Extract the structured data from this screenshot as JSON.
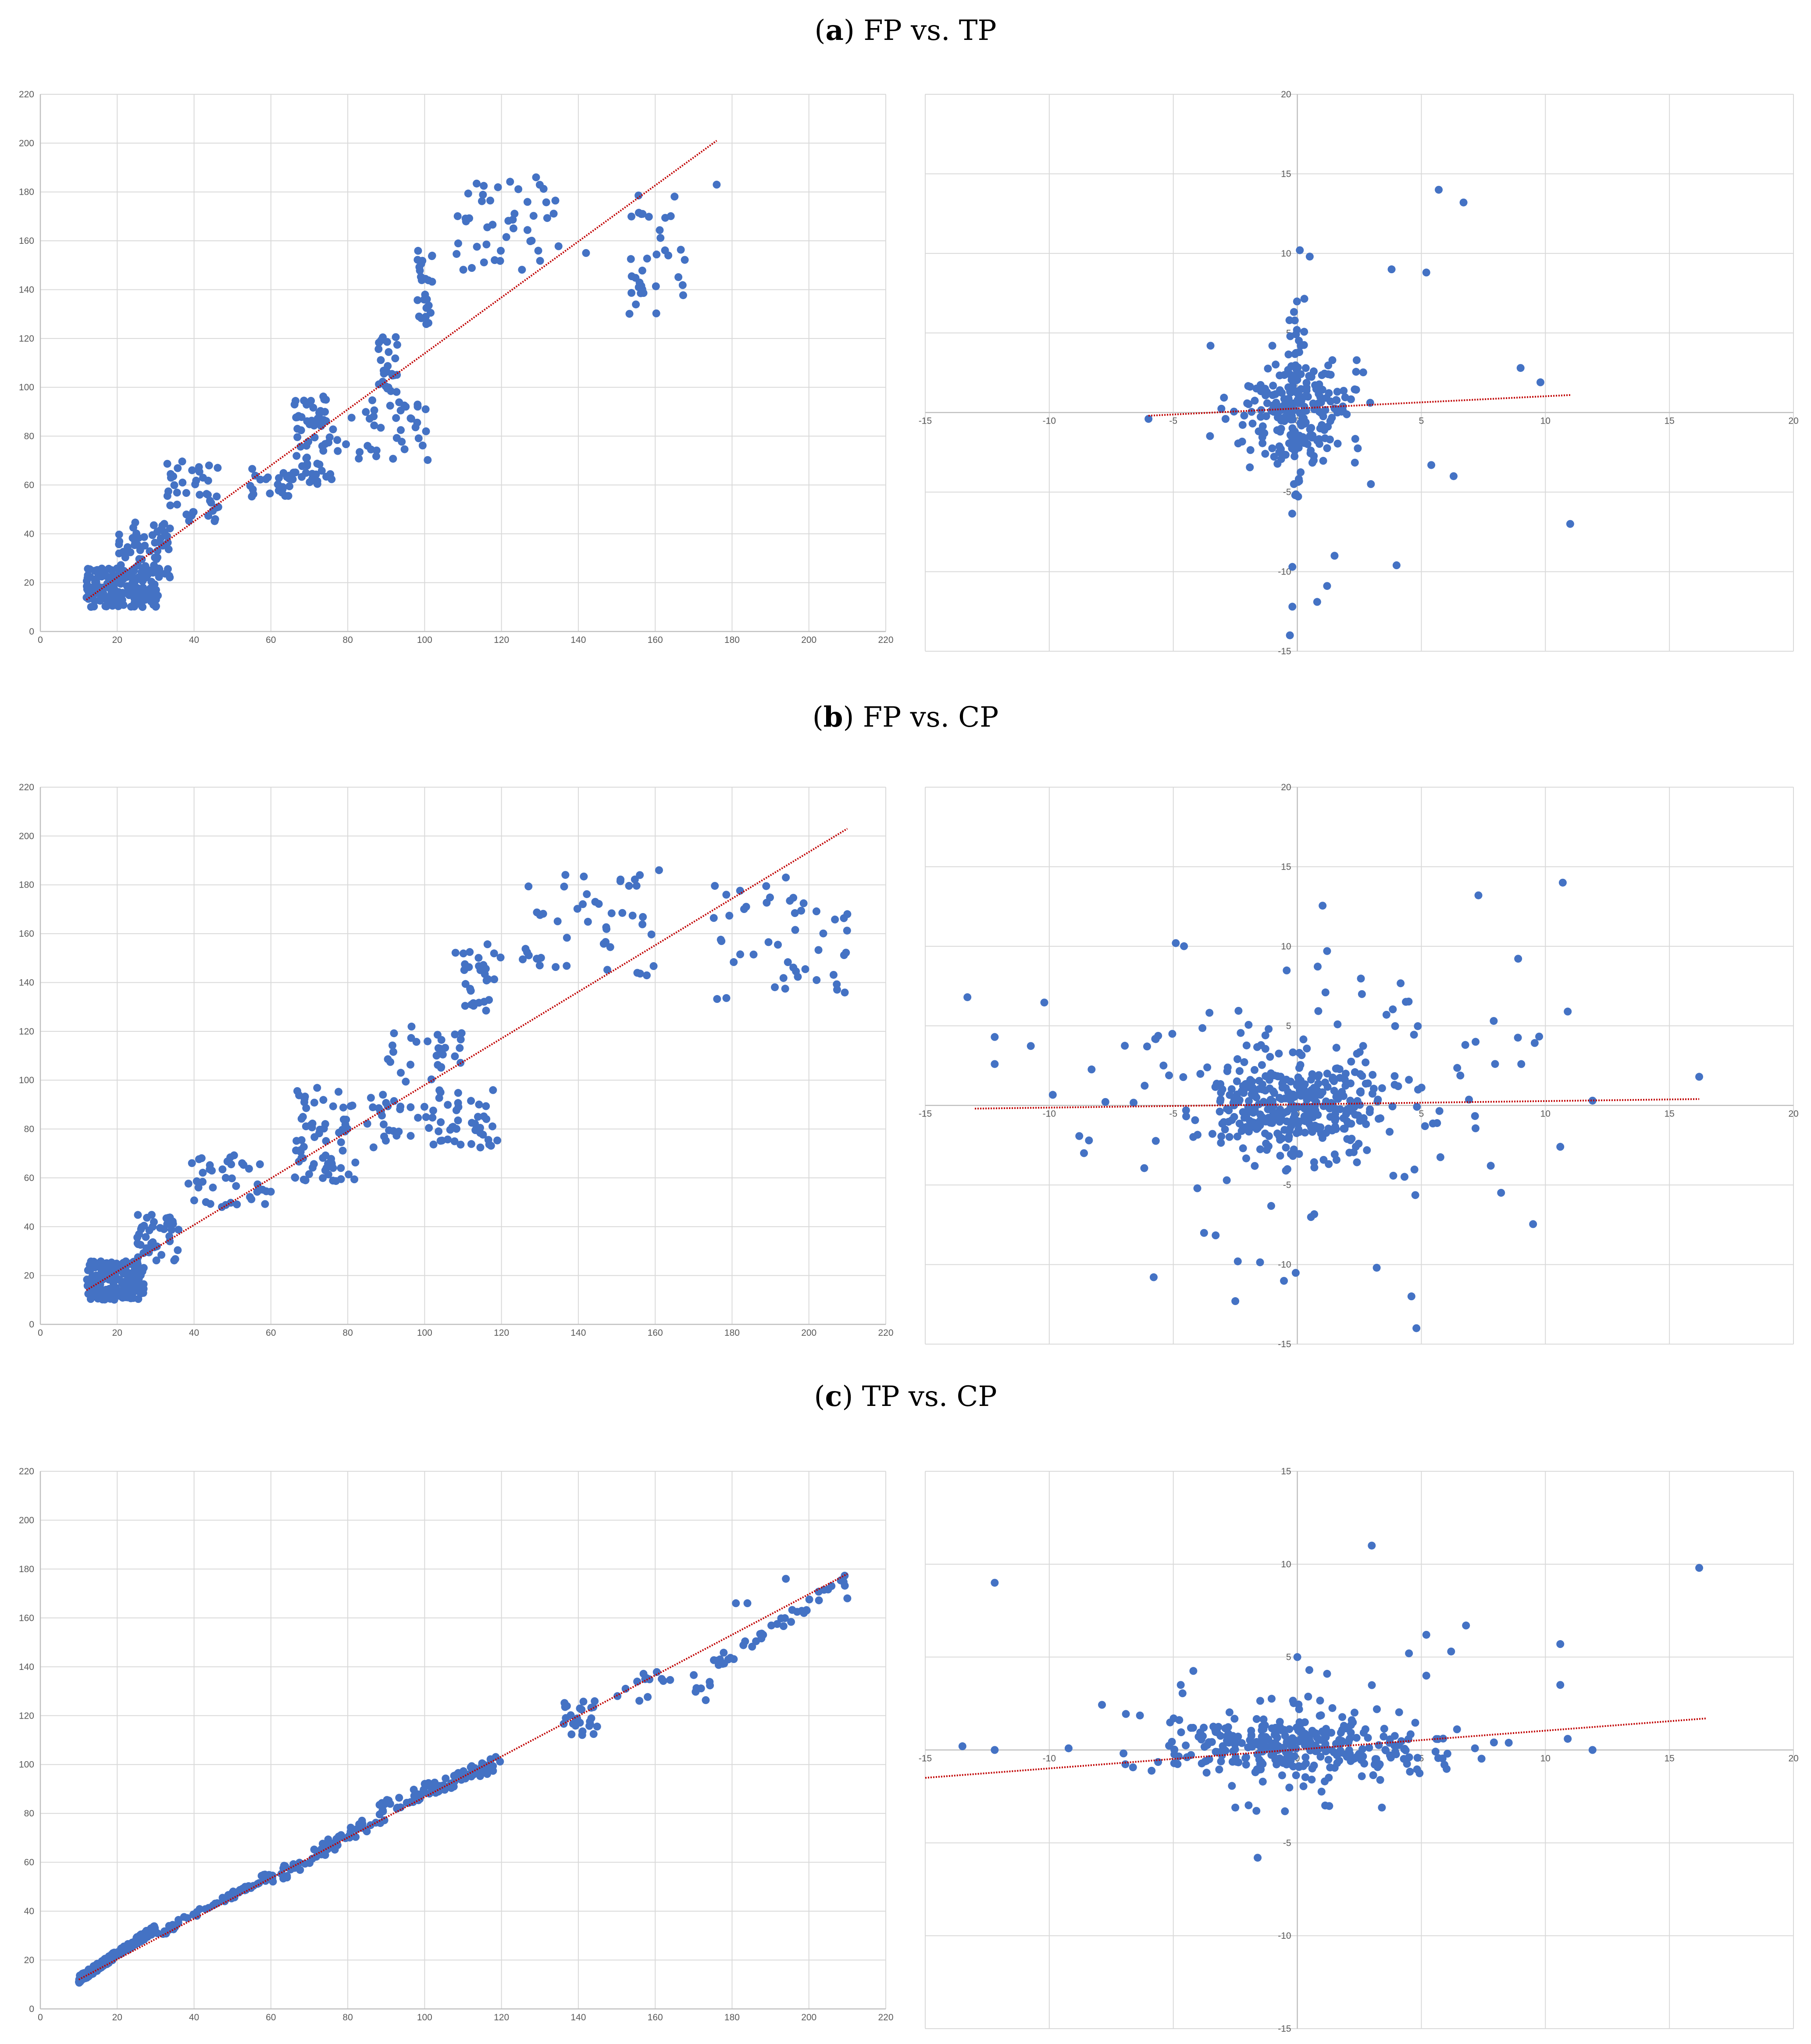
{
  "panels": [
    {
      "letter": "a",
      "title": "FP vs. TP",
      "charts": [
        {
          "type": "scatter",
          "title": "",
          "xlabel": "",
          "ylabel": "",
          "xlim": [
            0,
            220
          ],
          "ylim": [
            0,
            220
          ],
          "xstep": 20,
          "ystep": 20,
          "grid": true,
          "axis_style": "box",
          "point_color": "#4472c4",
          "trend_color": "#c00000",
          "trendline": {
            "x": [
              12,
              176
            ],
            "y": [
              13,
              201
            ]
          },
          "clusters": [
            {
              "x": [
                12,
                31
              ],
              "y": [
                10,
                26
              ],
              "n": 180
            },
            {
              "x": [
                20,
                34
              ],
              "y": [
                22,
                45
              ],
              "n": 60
            },
            {
              "x": [
                33,
                47
              ],
              "y": [
                45,
                70
              ],
              "n": 40
            },
            {
              "x": [
                50,
                66
              ],
              "y": [
                55,
                67
              ],
              "n": 25
            },
            {
              "x": [
                66,
                76
              ],
              "y": [
                60,
                97
              ],
              "n": 60
            },
            {
              "x": [
                76,
                101
              ],
              "y": [
                70,
                95
              ],
              "n": 40
            },
            {
              "x": [
                88,
                93
              ],
              "y": [
                98,
                121
              ],
              "n": 25
            },
            {
              "x": [
                98,
                102
              ],
              "y": [
                125,
                157
              ],
              "n": 25
            },
            {
              "x": [
                108,
                135
              ],
              "y": [
                148,
                185
              ],
              "n": 45
            },
            {
              "x": [
                153,
                168
              ],
              "y": [
                130,
                180
              ],
              "n": 35
            }
          ],
          "points": [
            [
              176,
              183
            ],
            [
              142,
              155
            ],
            [
              129,
              186
            ]
          ]
        },
        {
          "type": "scatter",
          "title": "",
          "xlabel": "",
          "ylabel": "",
          "xlim": [
            -15,
            20
          ],
          "ylim": [
            -15,
            20
          ],
          "xstep": 5,
          "ystep": 5,
          "grid": true,
          "axis_style": "cross",
          "point_color": "#4472c4",
          "trend_color": "#c00000",
          "trendline": {
            "x": [
              -6,
              11
            ],
            "y": [
              -0.2,
              1.1
            ]
          },
          "clusters": [
            {
              "x": [
                -2.5,
                2.5
              ],
              "y": [
                -3,
                3
              ],
              "n": 200,
              "dist": "normal"
            },
            {
              "x": [
                -0.5,
                0.5
              ],
              "y": [
                -8,
                9
              ],
              "n": 60,
              "dist": "normal"
            }
          ],
          "points": [
            [
              5.7,
              14
            ],
            [
              6.7,
              13.2
            ],
            [
              9,
              2.8
            ],
            [
              9.8,
              1.9
            ],
            [
              11,
              -7
            ],
            [
              4,
              -9.6
            ],
            [
              6.3,
              -4
            ],
            [
              5.4,
              -3.3
            ],
            [
              -0.3,
              -14
            ],
            [
              -0.2,
              -12.2
            ],
            [
              0.8,
              -11.9
            ],
            [
              1.2,
              -10.9
            ],
            [
              -6,
              -0.4
            ],
            [
              -3.5,
              4.2
            ],
            [
              3.8,
              9
            ],
            [
              5.2,
              8.8
            ],
            [
              0.1,
              10.2
            ],
            [
              0.5,
              9.8
            ],
            [
              -0.2,
              -9.7
            ],
            [
              1.5,
              -9
            ]
          ]
        }
      ]
    },
    {
      "letter": "b",
      "title": "FP vs. CP",
      "charts": [
        {
          "type": "scatter",
          "title": "",
          "xlabel": "",
          "ylabel": "",
          "xlim": [
            0,
            220
          ],
          "ylim": [
            0,
            220
          ],
          "xstep": 20,
          "ystep": 20,
          "grid": true,
          "axis_style": "box",
          "point_color": "#4472c4",
          "trend_color": "#c00000",
          "trendline": {
            "x": [
              12,
              210
            ],
            "y": [
              14,
              203
            ]
          },
          "clusters": [
            {
              "x": [
                12,
                27
              ],
              "y": [
                10,
                26
              ],
              "n": 190
            },
            {
              "x": [
                25,
                36
              ],
              "y": [
                26,
                45
              ],
              "n": 45
            },
            {
              "x": [
                38,
                60
              ],
              "y": [
                48,
                70
              ],
              "n": 40
            },
            {
              "x": [
                66,
                82
              ],
              "y": [
                58,
                97
              ],
              "n": 70
            },
            {
              "x": [
                85,
                120
              ],
              "y": [
                72,
                97
              ],
              "n": 70
            },
            {
              "x": [
                88,
                110
              ],
              "y": [
                97,
                122
              ],
              "n": 30
            },
            {
              "x": [
                108,
                120
              ],
              "y": [
                125,
                156
              ],
              "n": 30
            },
            {
              "x": [
                125,
                160
              ],
              "y": [
                140,
                186
              ],
              "n": 45
            },
            {
              "x": [
                175,
                210
              ],
              "y": [
                130,
                180
              ],
              "n": 45
            }
          ],
          "points": [
            [
              156,
              184
            ],
            [
              161,
              186
            ],
            [
              202,
              141
            ],
            [
              210,
              168
            ],
            [
              194,
              183
            ]
          ]
        },
        {
          "type": "scatter",
          "title": "",
          "xlabel": "",
          "ylabel": "",
          "xlim": [
            -15,
            20
          ],
          "ylim": [
            -15,
            20
          ],
          "xstep": 5,
          "ystep": 5,
          "grid": true,
          "axis_style": "cross",
          "point_color": "#4472c4",
          "trend_color": "#c00000",
          "trendline": {
            "x": [
              -13,
              16.2
            ],
            "y": [
              -0.2,
              0.4
            ]
          },
          "clusters": [
            {
              "x": [
                -3.5,
                3.5
              ],
              "y": [
                -3,
                3
              ],
              "n": 300,
              "dist": "normal"
            },
            {
              "x": [
                -8,
                9
              ],
              "y": [
                -8,
                9
              ],
              "n": 150,
              "dist": "normal"
            }
          ],
          "points": [
            [
              10.7,
              14
            ],
            [
              7.3,
              13.2
            ],
            [
              -13.3,
              6.8
            ],
            [
              -12.2,
              4.3
            ],
            [
              -12.2,
              2.6
            ],
            [
              16.2,
              1.8
            ],
            [
              11.9,
              0.3
            ],
            [
              10.9,
              5.9
            ],
            [
              10.6,
              -2.6
            ],
            [
              4.8,
              -14
            ],
            [
              -2.5,
              -12.3
            ],
            [
              -2.4,
              -9.8
            ],
            [
              -4.9,
              10.2
            ],
            [
              -8.4,
              -2.2
            ],
            [
              -8.6,
              -3
            ],
            [
              4.6,
              -12
            ],
            [
              1.2,
              9.7
            ],
            [
              3.2,
              -10.2
            ]
          ]
        }
      ]
    },
    {
      "letter": "c",
      "title": "TP vs. CP",
      "charts": [
        {
          "type": "scatter",
          "title": "",
          "xlabel": "",
          "ylabel": "",
          "xlim": [
            0,
            220
          ],
          "ylim": [
            0,
            220
          ],
          "xstep": 20,
          "ystep": 20,
          "grid": true,
          "axis_style": "box",
          "point_color": "#4472c4",
          "trend_color": "#c00000",
          "trendline": {
            "x": [
              10,
              210
            ],
            "y": [
              12,
              178
            ]
          },
          "clusters": [
            {
              "x": [
                10,
                30
              ],
              "y": [
                12,
                33
              ],
              "n": 200,
              "dist": "line",
              "spread": 3
            },
            {
              "x": [
                30,
                60
              ],
              "y": [
                30,
                55
              ],
              "n": 60,
              "dist": "line",
              "spread": 3
            },
            {
              "x": [
                60,
                90
              ],
              "y": [
                53,
                80
              ],
              "n": 60,
              "dist": "line",
              "spread": 6
            },
            {
              "x": [
                88,
                120
              ],
              "y": [
                82,
                101
              ],
              "n": 80,
              "dist": "line",
              "spread": 6
            },
            {
              "x": [
                135,
                145
              ],
              "y": [
                111,
                126
              ],
              "n": 25
            },
            {
              "x": [
                150,
                175
              ],
              "y": [
                126,
                138
              ],
              "n": 20
            },
            {
              "x": [
                175,
                210
              ],
              "y": [
                140,
                176
              ],
              "n": 40,
              "dist": "line",
              "spread": 6
            }
          ],
          "points": [
            [
              194,
              176
            ],
            [
              181,
              166
            ],
            [
              184,
              166
            ],
            [
              210,
              168
            ],
            [
              179,
              143
            ]
          ]
        },
        {
          "type": "scatter",
          "title": "",
          "xlabel": "",
          "ylabel": "",
          "xlim": [
            -15,
            20
          ],
          "ylim": [
            -15,
            15
          ],
          "xstep": 5,
          "ystep": 5,
          "grid": true,
          "axis_style": "cross",
          "point_color": "#4472c4",
          "trend_color": "#c00000",
          "trendline": {
            "x": [
              -15,
              16.5
            ],
            "y": [
              -1.5,
              1.7
            ]
          },
          "clusters": [
            {
              "x": [
                -6,
                6
              ],
              "y": [
                -1.5,
                1.8
              ],
              "n": 300,
              "dist": "normal"
            },
            {
              "x": [
                -4,
                4
              ],
              "y": [
                -3,
                3.5
              ],
              "n": 60,
              "dist": "normal"
            }
          ],
          "points": [
            [
              -13.5,
              0.2
            ],
            [
              -12.2,
              0
            ],
            [
              -12.2,
              9
            ],
            [
              16.2,
              9.8
            ],
            [
              3,
              11
            ],
            [
              6.8,
              6.7
            ],
            [
              4.5,
              5.2
            ],
            [
              5.2,
              6.2
            ],
            [
              5.2,
              4
            ],
            [
              6.2,
              5.3
            ],
            [
              10.6,
              5.7
            ],
            [
              10.6,
              3.5
            ],
            [
              10.9,
              0.6
            ],
            [
              11.9,
              0
            ],
            [
              -1.6,
              -5.8
            ],
            [
              0,
              5
            ],
            [
              -2.5,
              -3.1
            ],
            [
              -0.5,
              -3.3
            ],
            [
              1.2,
              4.1
            ],
            [
              -4.7,
              3.5
            ]
          ]
        }
      ]
    }
  ]
}
